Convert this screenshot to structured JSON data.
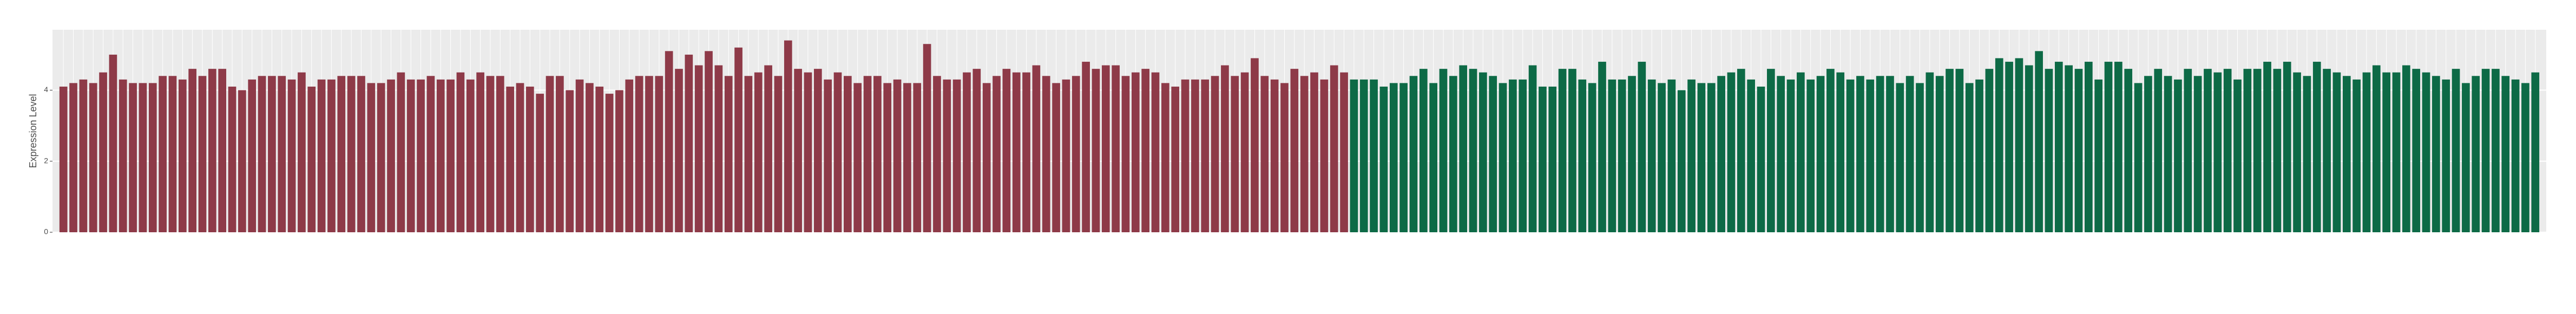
{
  "chart_data": {
    "type": "bar",
    "y_label": "Expression Level",
    "ylim": [
      0,
      5.7
    ],
    "yticks": [
      0,
      2,
      4
    ],
    "grid": true,
    "series": [
      {
        "color": "#8e3a48",
        "values": [
          4.1,
          4.2,
          4.3,
          4.2,
          4.5,
          5.0,
          4.3,
          4.2,
          4.2,
          4.2,
          4.4,
          4.4,
          4.3,
          4.6,
          4.4,
          4.6,
          4.6,
          4.1,
          4.0,
          4.3,
          4.4,
          4.4,
          4.4,
          4.3,
          4.5,
          4.1,
          4.3,
          4.3,
          4.4,
          4.4,
          4.4,
          4.2,
          4.2,
          4.3,
          4.5,
          4.3,
          4.3,
          4.4,
          4.3,
          4.3,
          4.5,
          4.3,
          4.5,
          4.4,
          4.4,
          4.1,
          4.2,
          4.1,
          3.9,
          4.4,
          4.4,
          4.0,
          4.3,
          4.2,
          4.1,
          3.9,
          4.0,
          4.3,
          4.4,
          4.4,
          4.4,
          5.1,
          4.6,
          5.0,
          4.7,
          5.1,
          4.7,
          4.4,
          5.2,
          4.4,
          4.5,
          4.7,
          4.4,
          5.4,
          4.6,
          4.5,
          4.6,
          4.3,
          4.5,
          4.4,
          4.2,
          4.4,
          4.4,
          4.2,
          4.3,
          4.2,
          4.2,
          5.3,
          4.4,
          4.3,
          4.3,
          4.5,
          4.6,
          4.2,
          4.4,
          4.6,
          4.5,
          4.5,
          4.7,
          4.4,
          4.2,
          4.3,
          4.4,
          4.8,
          4.6,
          4.7,
          4.7,
          4.4,
          4.5,
          4.6,
          4.5,
          4.2,
          4.1,
          4.3,
          4.3,
          4.3,
          4.4,
          4.7,
          4.4,
          4.5,
          4.9,
          4.4,
          4.3,
          4.2,
          4.6,
          4.4,
          4.5,
          4.3,
          4.7,
          4.5
        ]
      },
      {
        "color": "#0d6a46",
        "values": [
          4.3,
          4.3,
          4.3,
          4.1,
          4.2,
          4.2,
          4.4,
          4.6,
          4.2,
          4.6,
          4.4,
          4.7,
          4.6,
          4.5,
          4.4,
          4.2,
          4.3,
          4.3,
          4.7,
          4.1,
          4.1,
          4.6,
          4.6,
          4.3,
          4.2,
          4.8,
          4.3,
          4.3,
          4.4,
          4.8,
          4.3,
          4.2,
          4.3,
          4.0,
          4.3,
          4.2,
          4.2,
          4.4,
          4.5,
          4.6,
          4.3,
          4.1,
          4.6,
          4.4,
          4.3,
          4.5,
          4.3,
          4.4,
          4.6,
          4.5,
          4.3,
          4.4,
          4.3,
          4.4,
          4.4,
          4.2,
          4.4,
          4.2,
          4.5,
          4.4,
          4.6,
          4.6,
          4.2,
          4.3,
          4.6,
          4.9,
          4.8,
          4.9,
          4.7,
          5.1,
          4.6,
          4.8,
          4.7,
          4.6,
          4.8,
          4.3,
          4.8,
          4.8,
          4.6,
          4.2,
          4.4,
          4.6,
          4.4,
          4.3,
          4.6,
          4.4,
          4.6,
          4.5,
          4.6,
          4.3,
          4.6,
          4.6,
          4.8,
          4.6,
          4.8,
          4.5,
          4.4,
          4.8,
          4.6,
          4.5,
          4.4,
          4.3,
          4.5,
          4.7,
          4.5,
          4.5,
          4.7,
          4.6,
          4.5,
          4.4,
          4.3,
          4.6,
          4.2,
          4.4,
          4.6,
          4.6,
          4.4,
          4.3,
          4.2,
          4.5
        ]
      }
    ]
  }
}
